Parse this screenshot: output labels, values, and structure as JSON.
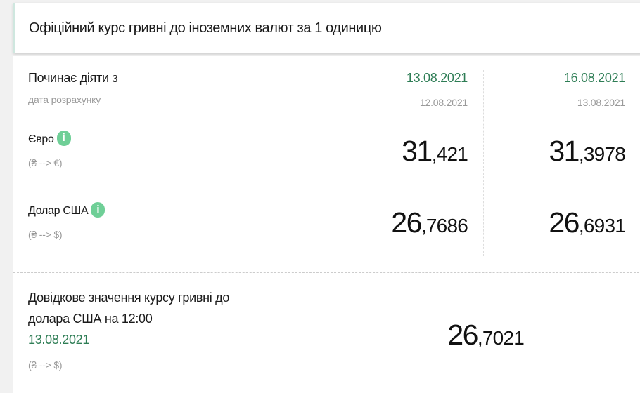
{
  "header": {
    "title": "Офіційний курс гривні до іноземних валют за 1 одиницю"
  },
  "table": {
    "effective_label": "Починає діяти з",
    "calc_label": "дата розрахунку",
    "columns": [
      {
        "effective_date": "13.08.2021",
        "calc_date": "12.08.2021"
      },
      {
        "effective_date": "16.08.2021",
        "calc_date": "13.08.2021"
      }
    ],
    "rows": [
      {
        "name": "Євро",
        "direction": "(₴ --> €)",
        "info_icon": "info-icon",
        "values": [
          {
            "int": "31",
            "dec": ",421"
          },
          {
            "int": "31",
            "dec": ",3978"
          }
        ]
      },
      {
        "name": "Долар США",
        "direction": "(₴ --> $)",
        "info_icon": "info-icon",
        "values": [
          {
            "int": "26",
            "dec": ",7686"
          },
          {
            "int": "26",
            "dec": ",6931"
          }
        ]
      }
    ]
  },
  "reference": {
    "label_line1": "Довідкове значення курсу гривні до",
    "label_line2": "долара США на 12:00",
    "date": "13.08.2021",
    "direction": "(₴ --> $)",
    "value": {
      "int": "26",
      "dec": ",7021"
    }
  },
  "colors": {
    "accent_green": "#2e7d55",
    "info_badge": "#6fcf97"
  }
}
